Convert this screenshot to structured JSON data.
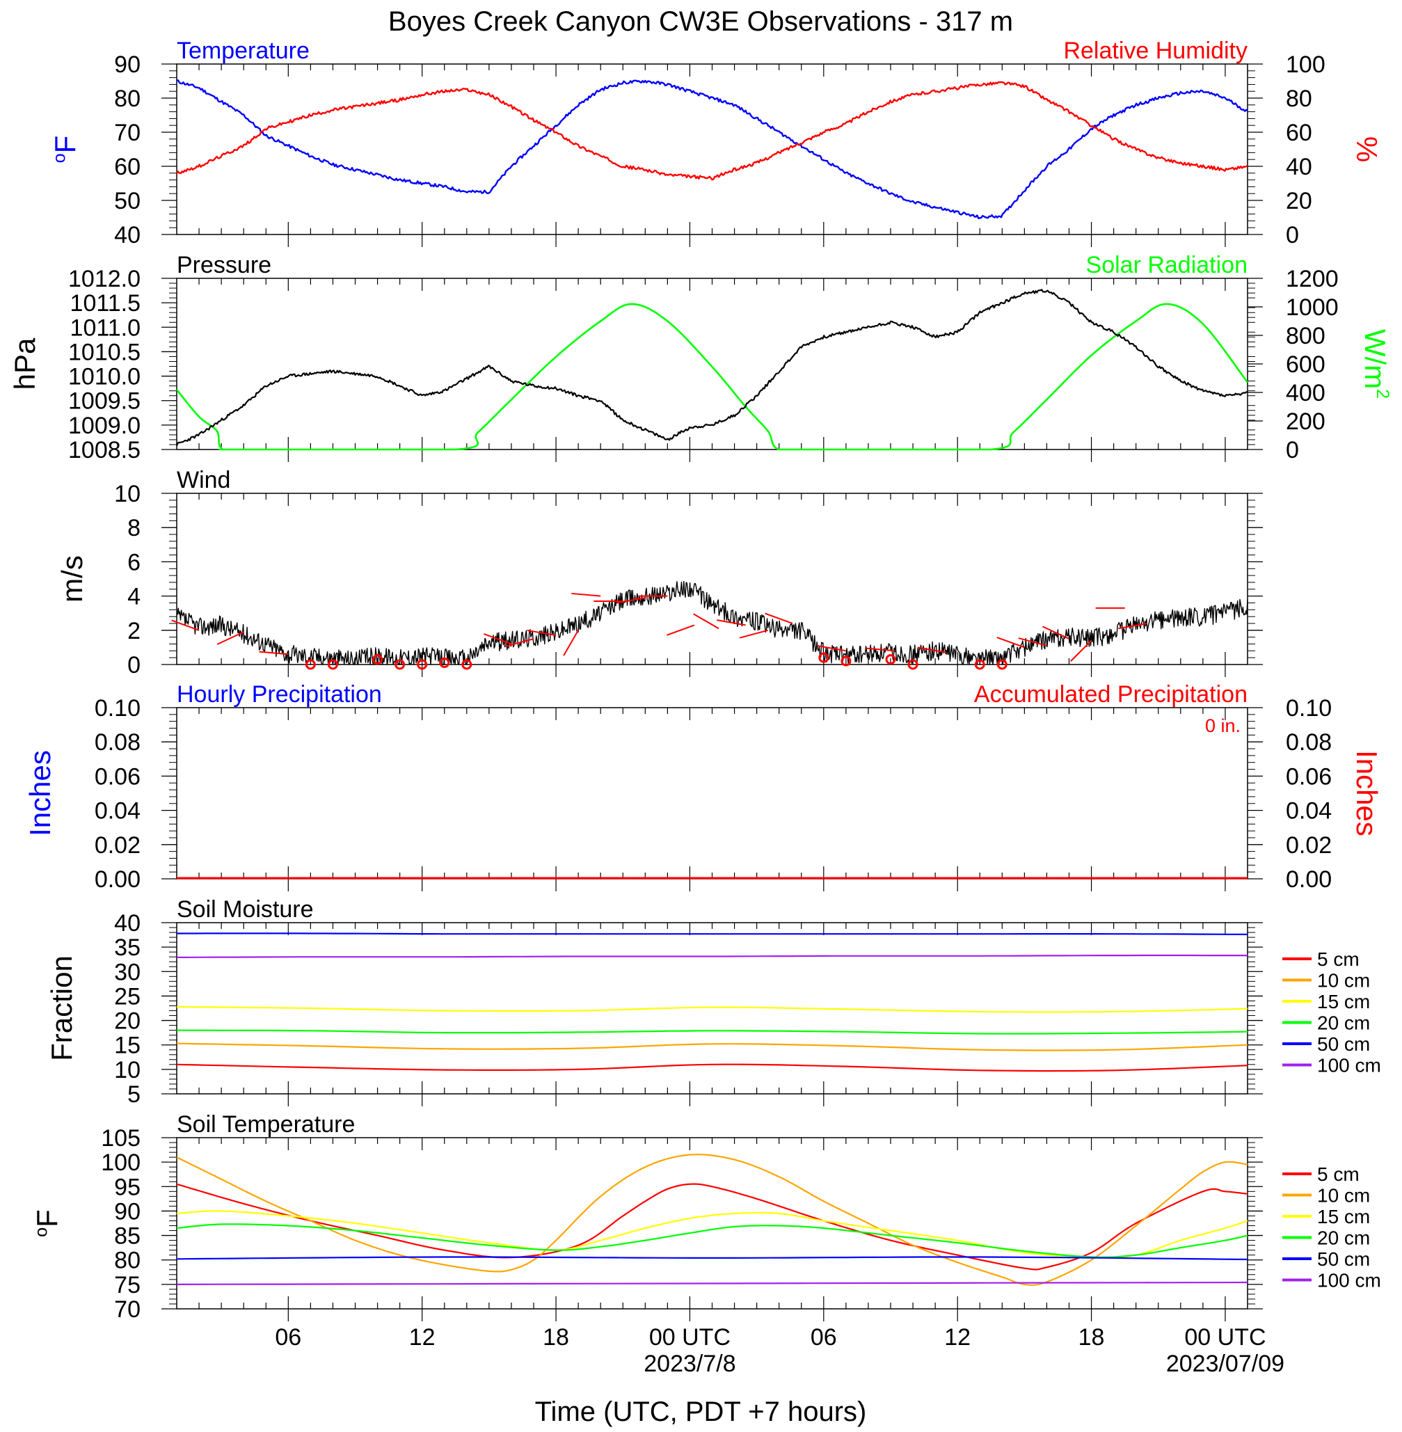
{
  "title": "Boyes Creek Canyon CW3E Observations - 317 m",
  "xaxis": {
    "label": "Time (UTC, PDT +7 hours)",
    "start_hour_utc": 1,
    "end_hour_utc": 49,
    "ticks": [
      {
        "hour": 6,
        "label": "06"
      },
      {
        "hour": 12,
        "label": "12"
      },
      {
        "hour": 18,
        "label": "18"
      },
      {
        "hour": 24,
        "label": "00 UTC",
        "date": "2023/7/8"
      },
      {
        "hour": 30,
        "label": "06"
      },
      {
        "hour": 36,
        "label": "12"
      },
      {
        "hour": 42,
        "label": "18"
      },
      {
        "hour": 48,
        "label": "00 UTC",
        "date": "2023/07/09"
      }
    ]
  },
  "colors": {
    "temperature": "#0000ff",
    "humidity": "#ff0000",
    "pressure": "#000000",
    "solar": "#00ff00",
    "wind": "#000000",
    "barb": "#ff0000",
    "hourly_precip": "#0000ff",
    "accum_precip": "#ff0000",
    "depth_colors": [
      "#ff0000",
      "#ffa500",
      "#ffff00",
      "#00ff00",
      "#0000ff",
      "#a020f0"
    ]
  },
  "chart_data": [
    {
      "type": "line",
      "panel": "temperature_humidity",
      "left_title": "Temperature",
      "right_title": "Relative Humidity",
      "ylabel_left": "oF",
      "ylabel_right": "%",
      "ylim_left": [
        40,
        90
      ],
      "yticks_left": [
        "40",
        "50",
        "60",
        "70",
        "80",
        "90"
      ],
      "ylim_right": [
        0,
        100
      ],
      "yticks_right": [
        "0",
        "20",
        "40",
        "60",
        "80",
        "100"
      ],
      "series": [
        {
          "name": "Temperature",
          "axis": "left",
          "x": [
            1,
            2,
            3,
            4,
            5,
            6,
            7,
            8,
            9,
            10,
            11,
            12,
            13,
            14,
            15,
            16,
            17,
            18,
            19,
            20,
            21,
            22,
            23,
            24,
            25,
            26,
            27,
            28,
            29,
            30,
            31,
            32,
            33,
            34,
            35,
            36,
            37,
            38,
            39,
            40,
            41,
            42,
            43,
            44,
            45,
            46,
            47,
            48,
            49
          ],
          "y": [
            85,
            83,
            79,
            75,
            69,
            66,
            63,
            60.5,
            59,
            57.5,
            56,
            55,
            54,
            52.5,
            52.5,
            60,
            66,
            72,
            78,
            82.5,
            84.5,
            85,
            84,
            82,
            80,
            78,
            74,
            70,
            66,
            62,
            58,
            55,
            52,
            49.5,
            48,
            46.5,
            45,
            45.5,
            53,
            60,
            65,
            71,
            75,
            78,
            80,
            81.5,
            82,
            80,
            76
          ]
        },
        {
          "name": "Relative Humidity",
          "axis": "right",
          "x": [
            1,
            2,
            3,
            4,
            5,
            6,
            7,
            8,
            9,
            10,
            11,
            12,
            13,
            14,
            15,
            16,
            17,
            18,
            19,
            20,
            21,
            22,
            23,
            24,
            25,
            26,
            27,
            28,
            29,
            30,
            31,
            32,
            33,
            34,
            35,
            36,
            37,
            38,
            39,
            40,
            41,
            42,
            43,
            44,
            45,
            46,
            47,
            48,
            49
          ],
          "y": [
            36,
            40,
            46,
            52,
            62,
            66,
            70,
            73,
            75,
            77,
            79,
            82,
            84,
            85,
            82,
            75,
            67,
            60,
            52,
            46,
            40,
            38,
            35,
            34,
            33,
            38,
            42,
            48,
            54,
            60,
            65,
            72,
            78,
            82,
            84,
            86,
            88,
            89,
            87,
            79,
            72,
            64,
            56,
            50,
            45,
            42,
            40,
            38,
            40
          ]
        }
      ]
    },
    {
      "type": "line",
      "panel": "pressure_solar",
      "left_title": "Pressure",
      "right_title": "Solar Radiation",
      "ylabel_left": "hPa",
      "ylabel_right": "W/m2",
      "ylim_left": [
        1008.5,
        1012.0
      ],
      "yticks_left": [
        "1008.5",
        "1009.0",
        "1009.5",
        "1010.0",
        "1010.5",
        "1011.0",
        "1011.5",
        "1012.0"
      ],
      "ylim_right": [
        0,
        1200
      ],
      "yticks_right": [
        "0",
        "200",
        "400",
        "600",
        "800",
        "1000",
        "1200"
      ],
      "series": [
        {
          "name": "Pressure",
          "axis": "left",
          "x": [
            1,
            2,
            3,
            4,
            5,
            6,
            7,
            8,
            9,
            10,
            11,
            12,
            13,
            14,
            15,
            16,
            17,
            18,
            19,
            20,
            21,
            22,
            23,
            24,
            25,
            26,
            27,
            28,
            29,
            30,
            31,
            32,
            33,
            34,
            35,
            36,
            37,
            38,
            39,
            40,
            41,
            42,
            43,
            44,
            45,
            46,
            47,
            48,
            49
          ],
          "y": [
            1008.6,
            1008.8,
            1009.1,
            1009.4,
            1009.8,
            1010.0,
            1010.05,
            1010.1,
            1010.05,
            1010.0,
            1009.8,
            1009.6,
            1009.7,
            1009.95,
            1010.2,
            1009.9,
            1009.8,
            1009.75,
            1009.6,
            1009.5,
            1009.1,
            1008.9,
            1008.7,
            1008.95,
            1009.0,
            1009.2,
            1009.6,
            1010.1,
            1010.6,
            1010.8,
            1010.9,
            1011.0,
            1011.1,
            1011.0,
            1010.8,
            1010.9,
            1011.3,
            1011.5,
            1011.7,
            1011.75,
            1011.5,
            1011.1,
            1010.9,
            1010.6,
            1010.2,
            1009.9,
            1009.7,
            1009.6,
            1009.65
          ]
        },
        {
          "name": "Solar Radiation",
          "axis": "right",
          "x": [
            1,
            2,
            2.8,
            3,
            4,
            13.5,
            14.5,
            16,
            18,
            20,
            21.4,
            23,
            25,
            26.5,
            27.5,
            28,
            30,
            37.5,
            38.5,
            40,
            42,
            44,
            45.4,
            47,
            49
          ],
          "y": [
            420,
            230,
            130,
            10,
            0,
            0,
            120,
            350,
            650,
            900,
            1020,
            900,
            580,
            300,
            130,
            0,
            0,
            0,
            120,
            350,
            660,
            900,
            1020,
            880,
            470
          ]
        }
      ]
    },
    {
      "type": "line",
      "panel": "wind",
      "left_title": "Wind",
      "ylabel_left": "m/s",
      "ylim_left": [
        0,
        10
      ],
      "yticks_left": [
        "0",
        "2",
        "4",
        "6",
        "8",
        "10"
      ],
      "series": [
        {
          "name": "Wind",
          "x": [
            1,
            2,
            3,
            4,
            5,
            6,
            7,
            8,
            9,
            10,
            11,
            12,
            13,
            14,
            15,
            16,
            17,
            18,
            19,
            20,
            21,
            22,
            23,
            24,
            25,
            26,
            27,
            28,
            29,
            30,
            31,
            32,
            33,
            34,
            35,
            36,
            37,
            38,
            39,
            40,
            41,
            42,
            43,
            44,
            45,
            46,
            47,
            48,
            49
          ],
          "y": [
            2.8,
            2.2,
            2.3,
            1.8,
            1.2,
            0.6,
            0.5,
            0.4,
            0.3,
            0.5,
            0.4,
            0.5,
            0.4,
            0.3,
            1.3,
            1.4,
            1.6,
            1.9,
            2.4,
            3.0,
            3.8,
            4.0,
            4.2,
            4.5,
            3.5,
            2.8,
            2.5,
            2.0,
            2.0,
            0.7,
            0.5,
            0.6,
            0.7,
            0.6,
            0.8,
            0.6,
            0.3,
            0.4,
            1.0,
            1.5,
            1.6,
            1.5,
            1.8,
            2.3,
            2.6,
            2.7,
            2.8,
            3.0,
            3.4
          ]
        }
      ]
    },
    {
      "type": "line",
      "panel": "precipitation",
      "left_title": "Hourly Precipitation",
      "right_title": "Accumulated Precipitation",
      "annotation": "0 in.",
      "ylabel_left": "Inches",
      "ylabel_right": "Inches",
      "ylim_left": [
        0,
        0.1
      ],
      "yticks_left": [
        "0.00",
        "0.02",
        "0.04",
        "0.06",
        "0.08",
        "0.10"
      ],
      "ylim_right": [
        0,
        0.1
      ],
      "yticks_right": [
        "0.00",
        "0.02",
        "0.04",
        "0.06",
        "0.08",
        "0.10"
      ],
      "series": [
        {
          "name": "Hourly Precipitation",
          "x": [
            1,
            49
          ],
          "y": [
            0,
            0
          ]
        },
        {
          "name": "Accumulated Precipitation",
          "x": [
            1,
            49
          ],
          "y": [
            0,
            0
          ]
        }
      ]
    },
    {
      "type": "line",
      "panel": "soil_moisture",
      "left_title": "Soil Moisture",
      "ylabel_left": "Fraction",
      "ylim_left": [
        5,
        40
      ],
      "yticks_left": [
        "5",
        "10",
        "15",
        "20",
        "25",
        "30",
        "35",
        "40"
      ],
      "legend": [
        "5 cm",
        "10 cm",
        "15 cm",
        "20 cm",
        "50 cm",
        "100 cm"
      ],
      "x": [
        1,
        7,
        13,
        19,
        25,
        31,
        37,
        43,
        49
      ],
      "series": [
        {
          "name": "5 cm",
          "y": [
            11.0,
            10.4,
            9.9,
            10.0,
            11.0,
            10.6,
            9.8,
            9.8,
            10.8
          ]
        },
        {
          "name": "10 cm",
          "y": [
            15.3,
            14.8,
            14.2,
            14.3,
            15.2,
            14.8,
            14.0,
            14.0,
            15.0
          ]
        },
        {
          "name": "15 cm",
          "y": [
            22.8,
            22.5,
            22.0,
            22.0,
            22.7,
            22.3,
            21.8,
            21.8,
            22.4
          ]
        },
        {
          "name": "20 cm",
          "y": [
            18.0,
            17.9,
            17.5,
            17.6,
            17.9,
            17.7,
            17.3,
            17.4,
            17.7
          ]
        },
        {
          "name": "50 cm",
          "y": [
            37.8,
            37.8,
            37.7,
            37.7,
            37.7,
            37.7,
            37.7,
            37.7,
            37.6
          ]
        },
        {
          "name": "100 cm",
          "y": [
            32.9,
            33.0,
            33.0,
            33.1,
            33.1,
            33.2,
            33.2,
            33.3,
            33.3
          ]
        }
      ]
    },
    {
      "type": "line",
      "panel": "soil_temperature",
      "left_title": "Soil Temperature",
      "ylabel_left": "oF",
      "ylim_left": [
        70,
        105
      ],
      "yticks_left": [
        "70",
        "75",
        "80",
        "85",
        "90",
        "95",
        "100",
        "105"
      ],
      "legend": [
        "5 cm",
        "10 cm",
        "15 cm",
        "20 cm",
        "50 cm",
        "100 cm"
      ],
      "series": [
        {
          "name": "5 cm",
          "x": [
            1,
            4,
            7,
            10,
            13,
            16,
            19,
            21,
            22,
            23,
            24,
            25,
            27,
            30,
            33,
            36,
            39,
            40,
            42,
            44,
            47,
            48,
            49
          ],
          "y": [
            95.5,
            91.5,
            88,
            85,
            82,
            80.5,
            83,
            89,
            92,
            94.5,
            95.5,
            95,
            92.5,
            88,
            84,
            81,
            78.3,
            78.5,
            81.5,
            87.5,
            94,
            94,
            93.5
          ]
        },
        {
          "name": "10 cm",
          "x": [
            1,
            3,
            5,
            7,
            9,
            11,
            13,
            15,
            16,
            17,
            18,
            20,
            22,
            24,
            26,
            28,
            30,
            32,
            34,
            36,
            38,
            39,
            40,
            42,
            44,
            46,
            47,
            48,
            49
          ],
          "y": [
            101,
            96.5,
            92,
            88,
            84,
            81,
            79,
            77.7,
            78,
            80,
            84,
            93,
            99,
            101.5,
            100.5,
            97,
            92,
            87.5,
            83,
            79.5,
            76.5,
            75,
            75.5,
            80,
            87,
            94.5,
            98,
            100,
            99.5
          ]
        },
        {
          "name": "15 cm",
          "x": [
            1,
            3,
            6,
            9,
            12,
            15,
            18,
            20,
            22,
            24,
            26,
            28,
            30,
            33,
            36,
            39,
            42,
            44,
            46,
            48,
            49
          ],
          "y": [
            89.5,
            90,
            89,
            87.5,
            85.5,
            83.5,
            82,
            84,
            86.5,
            88.5,
            89.5,
            89.5,
            88,
            86,
            84,
            81.5,
            80.5,
            81,
            84,
            86.5,
            88
          ]
        },
        {
          "name": "20 cm",
          "x": [
            1,
            3,
            6,
            9,
            12,
            15,
            18,
            20,
            22,
            24,
            26,
            28,
            30,
            33,
            36,
            39,
            42,
            44,
            46,
            48,
            49
          ],
          "y": [
            86.5,
            87.3,
            87,
            86,
            84.5,
            83,
            82,
            82.7,
            84,
            85.5,
            86.8,
            87,
            86.5,
            85,
            83.5,
            81.8,
            80.6,
            81,
            82.5,
            84,
            85
          ]
        },
        {
          "name": "50 cm",
          "x": [
            1,
            13,
            25,
            37,
            49
          ],
          "y": [
            80.2,
            80.6,
            80.4,
            80.6,
            80.1
          ]
        },
        {
          "name": "100 cm",
          "x": [
            1,
            49
          ],
          "y": [
            75,
            75.4
          ]
        }
      ]
    },
    {
      "type": "scatter",
      "panel": "wind_calm_markers",
      "note": "calm circles",
      "x": [
        7,
        8,
        10,
        11,
        12,
        13,
        14,
        30,
        31,
        33,
        34,
        37,
        38
      ],
      "y": [
        0,
        0,
        0.3,
        0,
        0,
        0.1,
        0,
        0.4,
        0.2,
        0.3,
        0,
        0,
        0
      ]
    },
    {
      "type": "scatter",
      "panel": "wind_barbs",
      "x": [
        2,
        4,
        6,
        16,
        17,
        18,
        19,
        20,
        21,
        22,
        23,
        24.2,
        25.3,
        26.5,
        27.5,
        28.6,
        31,
        33.2,
        35.5,
        39,
        40,
        41,
        42,
        43.5,
        44.5
      ],
      "y": [
        2.0,
        1.9,
        0.6,
        1.2,
        1.5,
        1.7,
        2.0,
        4.0,
        3.7,
        3.9,
        4.0,
        2.3,
        2.1,
        2.3,
        2.0,
        2.4,
        0.8,
        0.8,
        0.7,
        1.0,
        1.1,
        1.5,
        1.4,
        3.3,
        2.4
      ]
    }
  ]
}
